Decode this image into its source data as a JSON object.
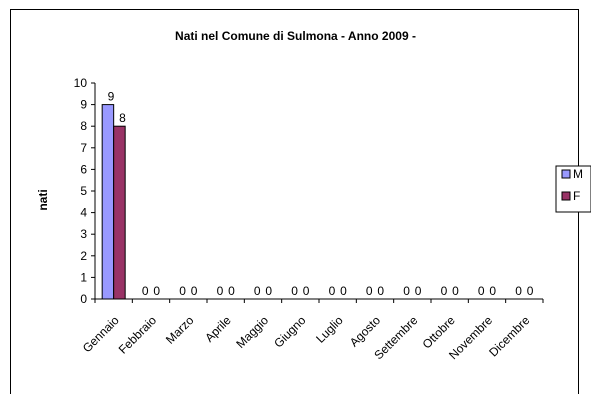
{
  "chart_data": {
    "type": "bar",
    "title": "Nati nel Comune di Sulmona - Anno 2009 -",
    "xlabel": "",
    "ylabel": "nati",
    "ylim": [
      0,
      10
    ],
    "yticks": [
      0,
      1,
      2,
      3,
      4,
      5,
      6,
      7,
      8,
      9,
      10
    ],
    "categories": [
      "Gennaio",
      "Febbraio",
      "Marzo",
      "Aprile",
      "Maggio",
      "Giugno",
      "Luglio",
      "Agosto",
      "Settembre",
      "Ottobre",
      "Novembre",
      "Dicembre"
    ],
    "series": [
      {
        "name": "M",
        "values": [
          9,
          0,
          0,
          0,
          0,
          0,
          0,
          0,
          0,
          0,
          0,
          0
        ],
        "color": "#9999ff"
      },
      {
        "name": "F",
        "values": [
          8,
          0,
          0,
          0,
          0,
          0,
          0,
          0,
          0,
          0,
          0,
          0
        ],
        "color": "#993366"
      }
    ],
    "data_labels": true,
    "grid": false,
    "legend": "right"
  }
}
